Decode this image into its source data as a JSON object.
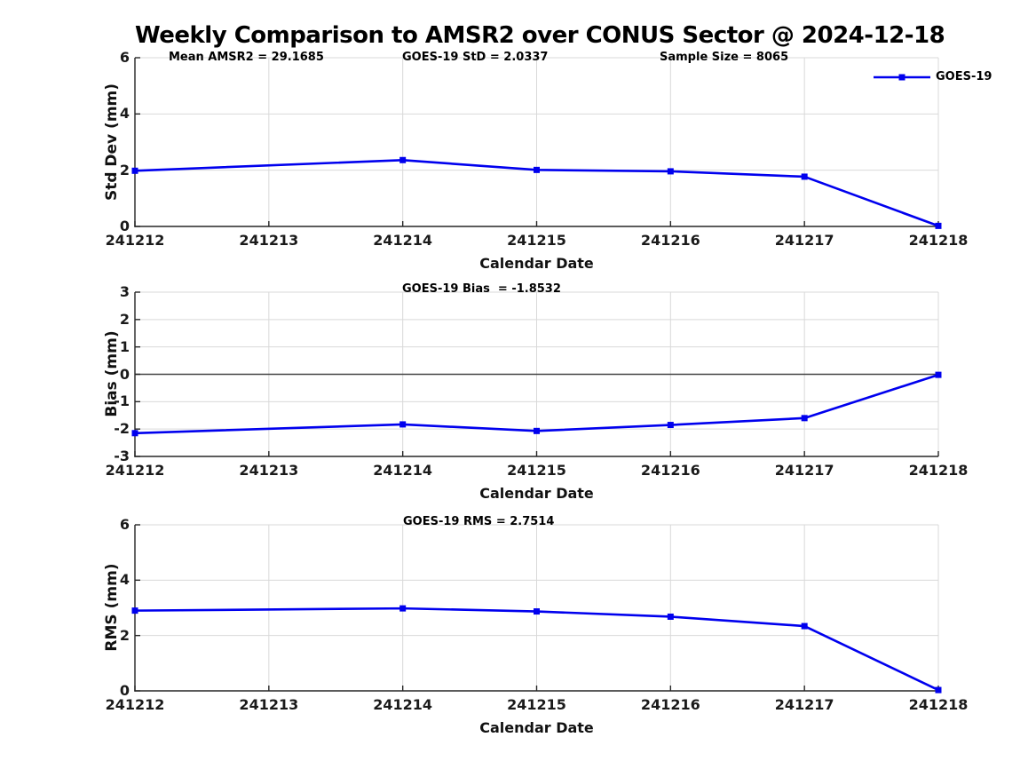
{
  "title": "Weekly Comparison to AMSR2 over CONUS Sector @ 2024-12-18",
  "legend": {
    "label": "GOES-19"
  },
  "colors": {
    "line": "#0000ee",
    "axis": "#262626",
    "grid": "#d9d9d9",
    "zero_line": "#444444",
    "text": "#000000",
    "background": "#ffffff"
  },
  "stats": {
    "mean_amsr2": 29.1685,
    "goes19_std": 2.0337,
    "sample_size": 8065,
    "goes19_bias": -1.8532,
    "goes19_rms": 2.7514
  },
  "chart_data": [
    {
      "type": "line",
      "panel": "std_dev",
      "annotations": [
        "Mean AMSR2 = 29.1685",
        "GOES-19 StD = 2.0337",
        "Sample Size = 8065"
      ],
      "ylabel": "Std Dev (mm)",
      "xlabel": "Calendar Date",
      "x_ticks": [
        "241212",
        "241213",
        "241214",
        "241215",
        "241216",
        "241217",
        "241218"
      ],
      "y_ticks": [
        0,
        2,
        4,
        6
      ],
      "ylim": [
        0,
        6
      ],
      "grid": true,
      "legend_position": "top-right",
      "series": [
        {
          "name": "GOES-19",
          "x": [
            "241212",
            "241214",
            "241215",
            "241216",
            "241217",
            "241218"
          ],
          "values": [
            1.98,
            2.36,
            2.01,
            1.96,
            1.77,
            0.02
          ]
        }
      ]
    },
    {
      "type": "line",
      "panel": "bias",
      "annotations": [
        "GOES-19 Bias  = -1.8532"
      ],
      "ylabel": "Bias (mm)",
      "xlabel": "Calendar Date",
      "x_ticks": [
        "241212",
        "241213",
        "241214",
        "241215",
        "241216",
        "241217",
        "241218"
      ],
      "y_ticks": [
        3,
        2,
        1,
        0,
        -1,
        -2,
        -3
      ],
      "ylim": [
        -3,
        3
      ],
      "grid": true,
      "zero_line": true,
      "series": [
        {
          "name": "GOES-19",
          "x": [
            "241212",
            "241214",
            "241215",
            "241216",
            "241217",
            "241218"
          ],
          "values": [
            -2.15,
            -1.83,
            -2.07,
            -1.85,
            -1.6,
            -0.02
          ]
        }
      ]
    },
    {
      "type": "line",
      "panel": "rms",
      "annotations": [
        "GOES-19 RMS = 2.7514"
      ],
      "ylabel": "RMS (mm)",
      "xlabel": "Calendar Date",
      "x_ticks": [
        "241212",
        "241213",
        "241214",
        "241215",
        "241216",
        "241217",
        "241218"
      ],
      "y_ticks": [
        0,
        2,
        4,
        6
      ],
      "ylim": [
        0,
        6
      ],
      "grid": true,
      "series": [
        {
          "name": "GOES-19",
          "x": [
            "241212",
            "241214",
            "241215",
            "241216",
            "241217",
            "241218"
          ],
          "values": [
            2.9,
            2.98,
            2.87,
            2.68,
            2.34,
            0.03
          ]
        }
      ]
    }
  ]
}
